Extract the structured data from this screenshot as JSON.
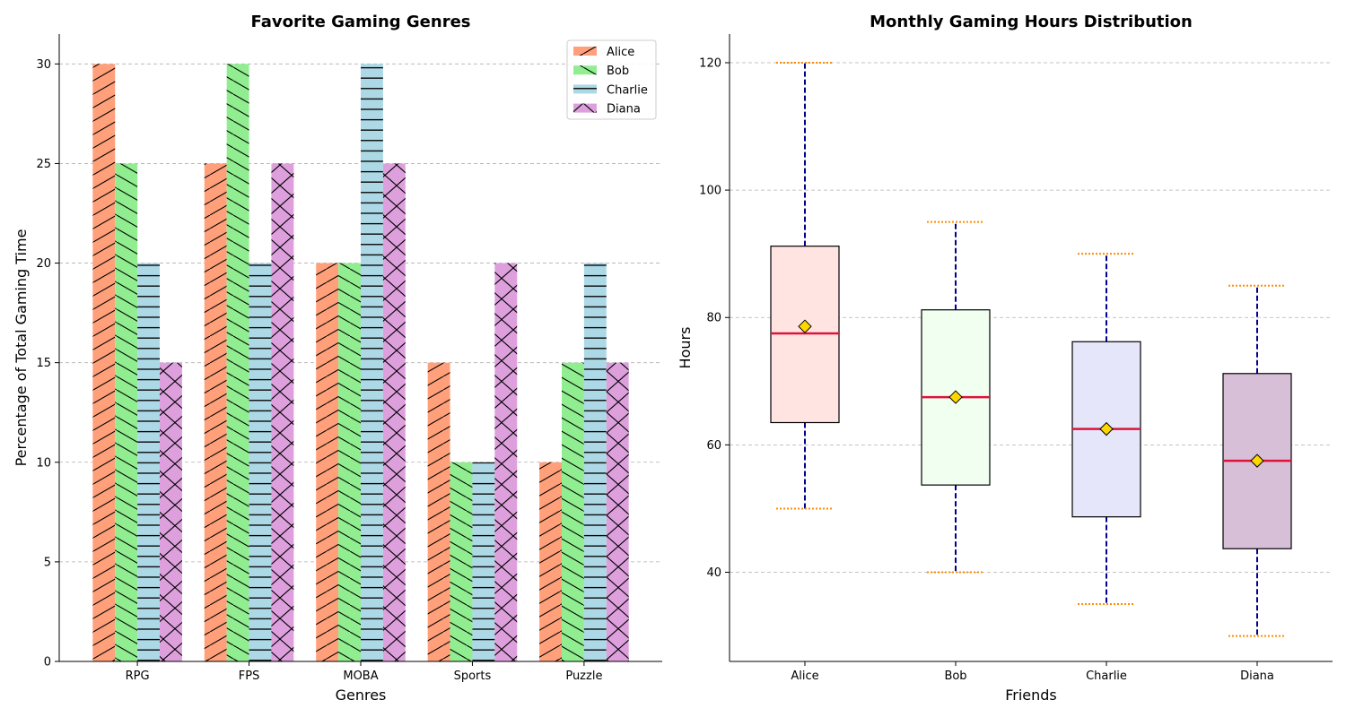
{
  "chart_data": [
    {
      "type": "bar",
      "title": "Favorite Gaming Genres",
      "xlabel": "Genres",
      "ylabel": "Percentage of Total Gaming Time",
      "categories": [
        "RPG",
        "FPS",
        "MOBA",
        "Sports",
        "Puzzle"
      ],
      "ylim": [
        0,
        31.5
      ],
      "yticks": [
        0,
        5,
        10,
        15,
        20,
        25,
        30
      ],
      "grid": "y-dashed",
      "legend": "top-right",
      "series": [
        {
          "name": "Alice",
          "values": [
            30,
            25,
            20,
            15,
            10
          ],
          "color": "#ffa07a",
          "hatch": "/"
        },
        {
          "name": "Bob",
          "values": [
            25,
            30,
            20,
            10,
            15
          ],
          "color": "#90ee90",
          "hatch": "\\"
        },
        {
          "name": "Charlie",
          "values": [
            20,
            20,
            30,
            10,
            20
          ],
          "color": "#add8e6",
          "hatch": "-"
        },
        {
          "name": "Diana",
          "values": [
            15,
            25,
            25,
            20,
            15
          ],
          "color": "#dda0dd",
          "hatch": "x"
        }
      ]
    },
    {
      "type": "box",
      "title": "Monthly Gaming Hours Distribution",
      "xlabel": "Friends",
      "ylabel": "Hours",
      "categories": [
        "Alice",
        "Bob",
        "Charlie",
        "Diana"
      ],
      "ylim": [
        26,
        124.5
      ],
      "yticks": [
        40,
        60,
        80,
        100,
        120
      ],
      "grid": "y-dashed",
      "boxes": [
        {
          "name": "Alice",
          "min": 50,
          "q1": 63.5,
          "median": 77.5,
          "q3": 91.2,
          "max": 120,
          "mean": 78.6,
          "color": "#ffe4e1"
        },
        {
          "name": "Bob",
          "min": 40,
          "q1": 53.7,
          "median": 67.5,
          "q3": 81.2,
          "max": 95,
          "mean": 67.5,
          "color": "#f0fff0"
        },
        {
          "name": "Charlie",
          "min": 35,
          "q1": 48.7,
          "median": 62.5,
          "q3": 76.2,
          "max": 90,
          "mean": 62.5,
          "color": "#e6e6fa"
        },
        {
          "name": "Diana",
          "min": 30,
          "q1": 43.7,
          "median": 57.5,
          "q3": 71.2,
          "max": 85,
          "mean": 57.5,
          "color": "#d8bfd8"
        }
      ],
      "median_color": "#dc143c",
      "whisker_color": "#00008b",
      "cap_color": "#ff8c00",
      "mean_color": "#ffd700"
    }
  ]
}
